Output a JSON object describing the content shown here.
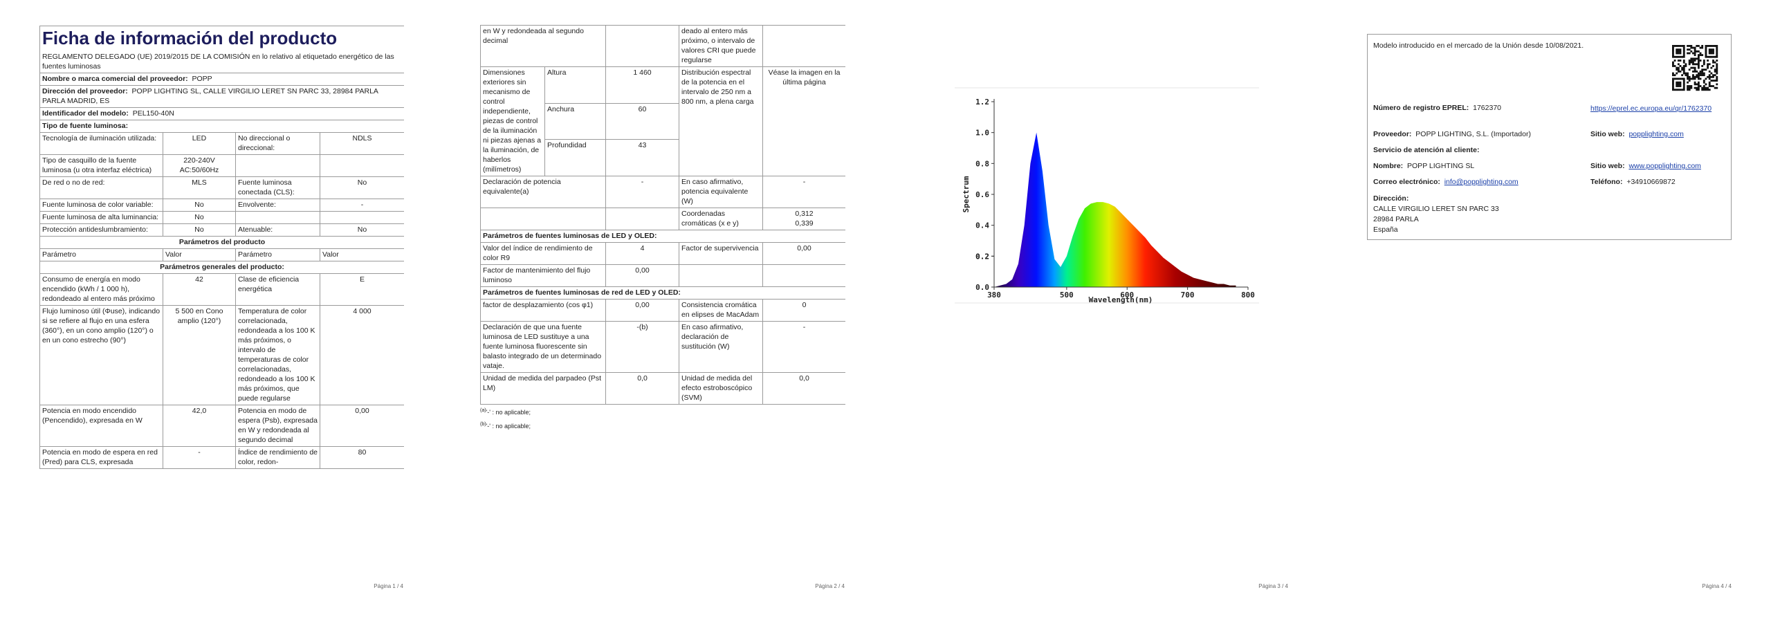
{
  "page1": {
    "title": "Ficha de información del producto",
    "regulation": "REGLAMENTO DELEGADO (UE) 2019/2015 DE LA COMISIÓN en lo relativo al etiquetado energético de las fuentes luminosas",
    "supplier_rows": [
      [
        "Nombre o marca comercial del proveedor:",
        "POPP"
      ],
      [
        "Dirección del proveedor:",
        "POPP LIGHTING SL, CALLE VIRGILIO LERET SN PARC 33, 28984 PARLA PARLA MADRID, ES"
      ],
      [
        "Identificador del modelo:",
        "PEL150-40N"
      ]
    ],
    "source_type_heading": "Tipo de fuente luminosa:",
    "source_rows": [
      [
        "Tecnología de iluminación utilizada:",
        "LED",
        "No direccional o direccional:",
        "NDLS"
      ],
      [
        "Tipo de casquillo de la fuente luminosa (u otra interfaz eléctrica)",
        "220-240V AC:50/60Hz",
        null,
        null
      ],
      [
        "De red o no de red:",
        "MLS",
        "Fuente luminosa conectada (CLS):",
        "No"
      ],
      [
        "Fuente luminosa de color variable:",
        "No",
        "Envolvente:",
        "-"
      ],
      [
        "Fuente luminosa de alta luminancia:",
        "No",
        null,
        null
      ],
      [
        "Protección antideslumbramiento:",
        "No",
        "Atenuable:",
        "No"
      ]
    ],
    "params_heading": "Parámetros del producto",
    "column_headers": [
      "Parámetro",
      "Valor",
      "Parámetro",
      "Valor"
    ],
    "general_heading": "Parámetros generales del producto:",
    "general_rows": [
      [
        "Consumo de energía en modo encendido (kWh / 1 000 h), redondeado al entero más próximo",
        "42",
        "Clase de eficiencia energética",
        "E"
      ],
      [
        "Flujo luminoso útil (Φuse), indicando si se refiere al flujo en una esfera (360°), en un cono amplio (120°) o en un cono estrecho (90°)",
        "5 500 en Cono amplio (120°)",
        "Temperatura de color correlacionada, redondeada a los 100 K más próximos, o intervalo de temperaturas de color correlacionadas, redondeado a los 100 K más próximos, que puede regularse",
        "4 000"
      ],
      [
        "Potencia en modo encendido (Pencendido), expresada en W",
        "42,0",
        "Potencia en modo de espera (Psb), expresada en W y redondeada al segundo decimal",
        "0,00"
      ],
      [
        "Potencia en modo de espera en red (Pred) para CLS, expresada",
        "-",
        "Índice de rendimiento de color, redon-",
        "80"
      ]
    ]
  },
  "page2": {
    "continued_row": [
      "en W y redondeada al segundo decimal",
      null,
      "deado al entero más próximo, o intervalo de valores CRI que puede regularse",
      null
    ],
    "dimensions": {
      "label": "Dimensiones exteriores sin mecanismo de control independiente, piezas de control de la iluminación ni piezas ajenas a la iluminación, de haberlos (milímetros)",
      "items": [
        [
          "Altura",
          "1 460"
        ],
        [
          "Anchura",
          "60"
        ],
        [
          "Profundidad",
          "43"
        ]
      ],
      "spd_label": "Distribución espectral de la potencia en el intervalo de 250 nm a 800 nm, a plena carga",
      "spd_value": "Véase la imagen en la última página"
    },
    "rows": [
      [
        "Declaración de potencia equivalente(a)",
        "-",
        "En caso afirmativo, potencia equivalente (W)",
        "-"
      ],
      [
        null,
        null,
        "Coordenadas cromáticas (x e y)",
        [
          "0,312",
          "0,339"
        ]
      ]
    ],
    "led_heading": "Parámetros de fuentes luminosas de LED y OLED:",
    "led_rows": [
      [
        "Valor del índice de rendimiento de color R9",
        "4",
        "Factor de supervivencia",
        "0,00"
      ],
      [
        "Factor de mantenimiento del flujo luminoso",
        "0,00",
        null,
        null
      ]
    ],
    "mains_heading": "Parámetros de fuentes luminosas de red de LED y OLED:",
    "mains_rows": [
      [
        "factor de desplazamiento (cos φ1)",
        "0,00",
        "Consistencia cromática en elipses de MacAdam",
        "0"
      ],
      [
        "Declaración de que una fuente luminosa de LED sustituye a una fuente luminosa fluorescente sin balasto integrado de un determinado vataje.",
        "-(b)",
        "En caso afirmativo, declaración de sustitución (W)",
        "-"
      ],
      [
        "Unidad de medida del parpadeo (Pst LM)",
        "0,0",
        "Unidad de medida del efecto estroboscópico (SVM)",
        "0,0"
      ]
    ],
    "footnotes": [
      [
        "(a)",
        "'-' : no aplicable;"
      ],
      [
        "(b)",
        "'-' : no aplicable;"
      ]
    ]
  },
  "chart_data": {
    "type": "area",
    "xlabel": "Wavelength(nm)",
    "ylabel": "Spectrum",
    "x": [
      380,
      390,
      400,
      410,
      420,
      430,
      440,
      450,
      460,
      470,
      480,
      490,
      500,
      510,
      520,
      530,
      540,
      550,
      560,
      570,
      580,
      590,
      600,
      610,
      620,
      630,
      640,
      650,
      660,
      670,
      680,
      690,
      700,
      710,
      720,
      730,
      740,
      750,
      760,
      770,
      780
    ],
    "values": [
      0.0,
      0.01,
      0.02,
      0.05,
      0.15,
      0.4,
      0.8,
      1.0,
      0.75,
      0.4,
      0.18,
      0.13,
      0.2,
      0.33,
      0.44,
      0.51,
      0.54,
      0.55,
      0.55,
      0.54,
      0.52,
      0.48,
      0.44,
      0.4,
      0.36,
      0.32,
      0.27,
      0.23,
      0.19,
      0.16,
      0.13,
      0.1,
      0.08,
      0.06,
      0.05,
      0.04,
      0.03,
      0.02,
      0.02,
      0.01,
      0.01
    ],
    "xlim": [
      380,
      800
    ],
    "xticks": [
      380,
      500,
      600,
      700,
      800
    ],
    "ylim": [
      0,
      1.2
    ],
    "yticks": [
      {
        "value": 0,
        "label": "0.0"
      },
      0.2,
      0.4,
      0.6,
      0.8,
      {
        "value": 1,
        "label": "1.0"
      },
      0.2,
      1.2
    ]
  },
  "page4": {
    "market_date": "Modelo introducido en el mercado de la Unión desde 10/08/2021.",
    "eprel_label": "Número de registro EPREL:",
    "eprel_number": "1762370",
    "eprel_link": "https://eprel.ec.europa.eu/qr/1762370",
    "supplier_label": "Proveedor:",
    "supplier": "POPP LIGHTING, S.L. (Importador)",
    "website_label": "Sitio web:",
    "website": "popplighting.com",
    "service_heading": "Servicio de atención al cliente:",
    "name_label": "Nombre:",
    "name": "POPP LIGHTING SL",
    "service_website_label": "Sitio web:",
    "service_website": "www.popplighting.com",
    "email_label": "Correo electrónico:",
    "email": "info@popplighting.com",
    "phone_label": "Teléfono:",
    "phone": "+34910669872",
    "address_label": "Dirección:",
    "address": [
      "CALLE VIRGILIO LERET SN PARC 33",
      "28984 PARLA",
      "España"
    ]
  },
  "footers": [
    "Página 1 / 4",
    "Página 2 / 4",
    "Página 3 / 4",
    "Página 4 / 4"
  ]
}
